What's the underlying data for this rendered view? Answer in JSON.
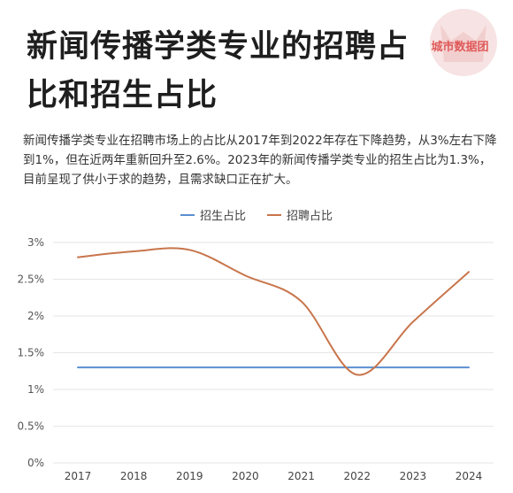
{
  "title": "新闻传播学类专业的招聘占比和招生占比",
  "brand": "城市数据团",
  "description": "新闻传播学类专业在招聘市场上的占比从2017年到2022年存在下降趋势，从3%左右下降到1%，但在近两年重新回升至2.6%。2023年的新闻传播学类专业的招生占比为1.3%，目前呈现了供小于求的趋势，且需求缺口正在扩大。",
  "colors": {
    "enroll": "#5b8fd0",
    "recruit": "#c8754b",
    "grid": "#e6e6e6"
  },
  "chart_data": {
    "type": "line",
    "x": [
      "2017",
      "2018",
      "2019",
      "2020",
      "2021",
      "2022",
      "2023",
      "2024"
    ],
    "ylim": [
      0,
      3
    ],
    "yticks": [
      "0%",
      "0.5%",
      "1%",
      "1.5%",
      "2%",
      "2.5%",
      "3%"
    ],
    "grid": true,
    "legend_position": "top-center",
    "series": [
      {
        "name": "招生占比",
        "values": [
          1.3,
          1.3,
          1.3,
          1.3,
          1.3,
          1.3,
          1.3,
          1.3
        ]
      },
      {
        "name": "招聘占比",
        "values": [
          2.8,
          2.88,
          2.9,
          2.55,
          2.2,
          1.2,
          1.92,
          2.6
        ]
      }
    ]
  }
}
